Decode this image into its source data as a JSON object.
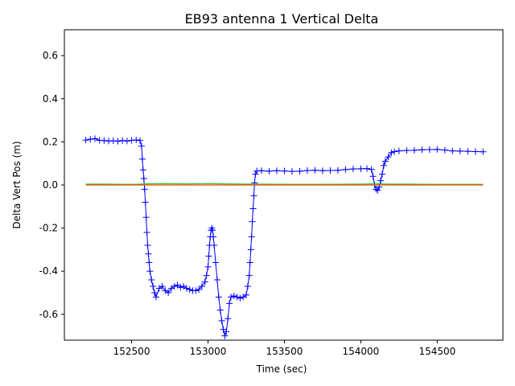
{
  "chart_data": {
    "type": "scatter",
    "title": "EB93 antenna 1 Vertical Delta",
    "xlabel": "Time (sec)",
    "ylabel": "Delta Vert Pos (m)",
    "xlim": [
      152060,
      154930
    ],
    "ylim": [
      -0.72,
      0.72
    ],
    "x_ticks": [
      152500,
      153000,
      153500,
      154000,
      154500
    ],
    "y_ticks": [
      -0.6,
      -0.4,
      -0.2,
      0.0,
      0.2,
      0.4,
      0.6
    ],
    "grid": false,
    "legend": "none",
    "series": [
      {
        "color": "#0000ff",
        "marker": "+",
        "points": [
          [
            152200,
            0.208
          ],
          [
            152230,
            0.212
          ],
          [
            152260,
            0.215
          ],
          [
            152290,
            0.207
          ],
          [
            152320,
            0.206
          ],
          [
            152350,
            0.204
          ],
          [
            152380,
            0.205
          ],
          [
            152410,
            0.203
          ],
          [
            152440,
            0.206
          ],
          [
            152470,
            0.204
          ],
          [
            152500,
            0.207
          ],
          [
            152530,
            0.209
          ],
          [
            152555,
            0.206
          ],
          [
            152565,
            0.18
          ],
          [
            152570,
            0.12
          ],
          [
            152575,
            0.07
          ],
          [
            152580,
            0.03
          ],
          [
            152585,
            -0.02
          ],
          [
            152590,
            -0.08
          ],
          [
            152595,
            -0.15
          ],
          [
            152600,
            -0.22
          ],
          [
            152605,
            -0.28
          ],
          [
            152610,
            -0.32
          ],
          [
            152615,
            -0.36
          ],
          [
            152620,
            -0.4
          ],
          [
            152630,
            -0.44
          ],
          [
            152640,
            -0.47
          ],
          [
            152650,
            -0.5
          ],
          [
            152660,
            -0.52
          ],
          [
            152680,
            -0.48
          ],
          [
            152700,
            -0.47
          ],
          [
            152720,
            -0.49
          ],
          [
            152740,
            -0.5
          ],
          [
            152760,
            -0.48
          ],
          [
            152780,
            -0.47
          ],
          [
            152800,
            -0.465
          ],
          [
            152820,
            -0.475
          ],
          [
            152840,
            -0.47
          ],
          [
            152860,
            -0.48
          ],
          [
            152880,
            -0.485
          ],
          [
            152900,
            -0.49
          ],
          [
            152920,
            -0.49
          ],
          [
            152940,
            -0.485
          ],
          [
            152960,
            -0.47
          ],
          [
            152980,
            -0.45
          ],
          [
            152990,
            -0.42
          ],
          [
            153000,
            -0.38
          ],
          [
            153005,
            -0.33
          ],
          [
            153010,
            -0.28
          ],
          [
            153015,
            -0.24
          ],
          [
            153020,
            -0.21
          ],
          [
            153025,
            -0.2
          ],
          [
            153030,
            -0.21
          ],
          [
            153035,
            -0.24
          ],
          [
            153040,
            -0.28
          ],
          [
            153050,
            -0.36
          ],
          [
            153060,
            -0.44
          ],
          [
            153070,
            -0.52
          ],
          [
            153080,
            -0.58
          ],
          [
            153090,
            -0.63
          ],
          [
            153100,
            -0.67
          ],
          [
            153110,
            -0.7
          ],
          [
            153120,
            -0.68
          ],
          [
            153130,
            -0.62
          ],
          [
            153140,
            -0.55
          ],
          [
            153150,
            -0.52
          ],
          [
            153170,
            -0.515
          ],
          [
            153190,
            -0.52
          ],
          [
            153210,
            -0.525
          ],
          [
            153230,
            -0.52
          ],
          [
            153250,
            -0.51
          ],
          [
            153260,
            -0.47
          ],
          [
            153270,
            -0.42
          ],
          [
            153275,
            -0.36
          ],
          [
            153280,
            -0.3
          ],
          [
            153285,
            -0.24
          ],
          [
            153290,
            -0.17
          ],
          [
            153295,
            -0.11
          ],
          [
            153300,
            -0.05
          ],
          [
            153305,
            0.01
          ],
          [
            153310,
            0.05
          ],
          [
            153320,
            0.065
          ],
          [
            153350,
            0.066
          ],
          [
            153400,
            0.064
          ],
          [
            153450,
            0.066
          ],
          [
            153500,
            0.065
          ],
          [
            153550,
            0.063
          ],
          [
            153600,
            0.064
          ],
          [
            153650,
            0.067
          ],
          [
            153700,
            0.068
          ],
          [
            153750,
            0.066
          ],
          [
            153800,
            0.067
          ],
          [
            153850,
            0.068
          ],
          [
            153900,
            0.072
          ],
          [
            153950,
            0.074
          ],
          [
            154000,
            0.075
          ],
          [
            154040,
            0.076
          ],
          [
            154070,
            0.072
          ],
          [
            154080,
            0.04
          ],
          [
            154090,
            0.0
          ],
          [
            154100,
            -0.02
          ],
          [
            154110,
            -0.025
          ],
          [
            154120,
            -0.01
          ],
          [
            154130,
            0.02
          ],
          [
            154140,
            0.05
          ],
          [
            154150,
            0.09
          ],
          [
            154160,
            0.11
          ],
          [
            154180,
            0.13
          ],
          [
            154200,
            0.15
          ],
          [
            154220,
            0.155
          ],
          [
            154250,
            0.158
          ],
          [
            154300,
            0.16
          ],
          [
            154350,
            0.161
          ],
          [
            154400,
            0.163
          ],
          [
            154450,
            0.164
          ],
          [
            154500,
            0.165
          ],
          [
            154550,
            0.162
          ],
          [
            154600,
            0.158
          ],
          [
            154650,
            0.157
          ],
          [
            154700,
            0.156
          ],
          [
            154750,
            0.155
          ],
          [
            154800,
            0.154
          ]
        ]
      },
      {
        "color": "#22cc22",
        "line": true,
        "points": [
          [
            152200,
            0.004
          ],
          [
            152500,
            0.003
          ],
          [
            152560,
            0.004
          ],
          [
            152600,
            0.005
          ],
          [
            152700,
            0.006
          ],
          [
            152850,
            0.005
          ],
          [
            153000,
            0.006
          ],
          [
            153100,
            0.005
          ],
          [
            153250,
            0.004
          ],
          [
            153300,
            0.004
          ],
          [
            153600,
            0.003
          ],
          [
            154000,
            0.004
          ],
          [
            154100,
            0.005
          ],
          [
            154200,
            0.004
          ],
          [
            154500,
            0.003
          ],
          [
            154800,
            0.003
          ]
        ]
      },
      {
        "color": "#ff4400",
        "line": true,
        "points": [
          [
            152200,
            0.0
          ],
          [
            154800,
            0.0
          ]
        ]
      }
    ]
  }
}
